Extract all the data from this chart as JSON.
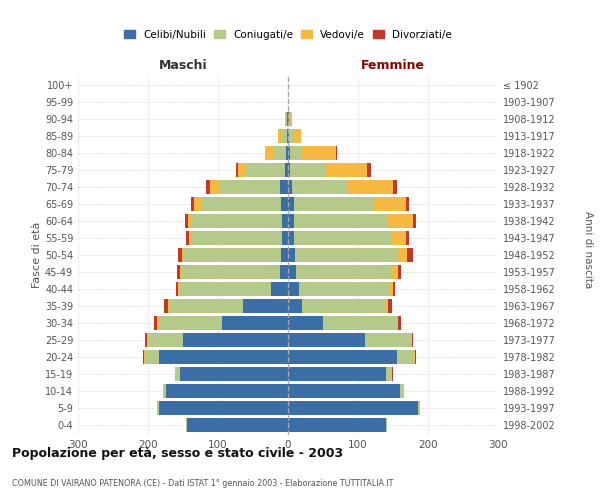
{
  "age_groups": [
    "0-4",
    "5-9",
    "10-14",
    "15-19",
    "20-24",
    "25-29",
    "30-34",
    "35-39",
    "40-44",
    "45-49",
    "50-54",
    "55-59",
    "60-64",
    "65-69",
    "70-74",
    "75-79",
    "80-84",
    "85-89",
    "90-94",
    "95-99",
    "100+"
  ],
  "year_ranges": [
    "1998-2002",
    "1993-1997",
    "1988-1992",
    "1983-1987",
    "1978-1982",
    "1973-1977",
    "1968-1972",
    "1963-1967",
    "1958-1962",
    "1953-1957",
    "1948-1952",
    "1943-1947",
    "1938-1942",
    "1933-1937",
    "1928-1932",
    "1923-1927",
    "1918-1922",
    "1913-1917",
    "1908-1912",
    "1903-1907",
    "≤ 1902"
  ],
  "male": {
    "celibe": [
      145,
      185,
      175,
      155,
      185,
      150,
      95,
      65,
      25,
      12,
      10,
      8,
      8,
      10,
      12,
      5,
      3,
      2,
      1,
      0,
      0
    ],
    "coniugato": [
      1,
      2,
      3,
      5,
      20,
      50,
      90,
      105,
      130,
      140,
      140,
      130,
      130,
      115,
      85,
      55,
      18,
      8,
      2,
      0,
      0
    ],
    "vedovo": [
      0,
      0,
      0,
      1,
      1,
      2,
      2,
      2,
      2,
      2,
      2,
      3,
      5,
      10,
      15,
      12,
      12,
      5,
      1,
      0,
      0
    ],
    "divorziato": [
      0,
      0,
      0,
      1,
      1,
      2,
      4,
      5,
      3,
      5,
      5,
      5,
      4,
      3,
      5,
      2,
      0,
      0,
      0,
      0,
      0
    ]
  },
  "female": {
    "nubile": [
      140,
      185,
      160,
      140,
      155,
      110,
      50,
      20,
      15,
      12,
      10,
      8,
      8,
      8,
      5,
      3,
      3,
      2,
      1,
      0,
      0
    ],
    "coniugata": [
      1,
      3,
      5,
      8,
      25,
      65,
      105,
      120,
      130,
      135,
      145,
      140,
      135,
      115,
      80,
      50,
      15,
      5,
      2,
      0,
      0
    ],
    "vedova": [
      0,
      0,
      0,
      1,
      1,
      2,
      2,
      3,
      5,
      10,
      15,
      20,
      35,
      45,
      65,
      60,
      50,
      12,
      2,
      0,
      0
    ],
    "divorziata": [
      0,
      0,
      0,
      1,
      2,
      2,
      5,
      5,
      3,
      5,
      8,
      5,
      5,
      5,
      5,
      5,
      2,
      0,
      0,
      0,
      0
    ]
  },
  "colors": {
    "celibe": "#3a6ea5",
    "coniugato": "#b5c98a",
    "vedovo": "#f5b942",
    "divorziato": "#c0392b"
  },
  "title": "Popolazione per età, sesso e stato civile - 2003",
  "subtitle": "COMUNE DI VAIRANO PATENORA (CE) - Dati ISTAT 1° gennaio 2003 - Elaborazione TUTTITALIA.IT",
  "xlabel_left": "Maschi",
  "xlabel_right": "Femmine",
  "ylabel_left": "Fasce di età",
  "ylabel_right": "Anni di nascita",
  "legend_labels": [
    "Celibi/Nubili",
    "Coniugati/e",
    "Vedovi/e",
    "Divorziati/e"
  ],
  "xlim": 300,
  "bg_color": "#ffffff",
  "grid_color": "#cccccc"
}
